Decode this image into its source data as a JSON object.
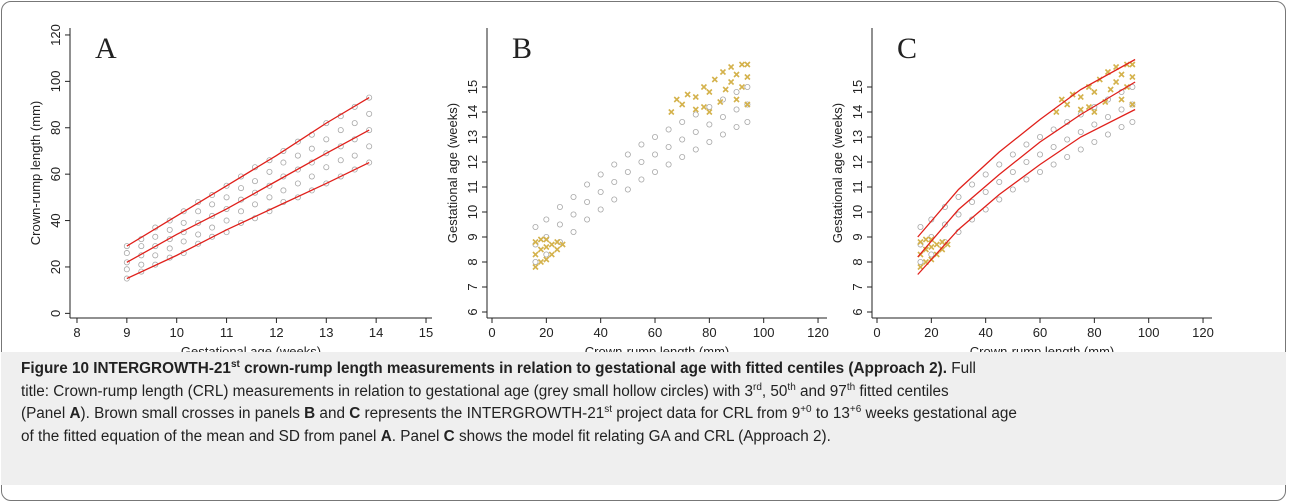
{
  "chart_data": [
    {
      "type": "scatter",
      "title": "A",
      "x_label": "Gestational age (weeks)",
      "y_label": "Crown-rump length (mm)",
      "xlim": [
        7.86,
        15.12
      ],
      "xticks": [
        8,
        9,
        10,
        11,
        12,
        13,
        14,
        15
      ],
      "ylim": [
        -2,
        123
      ],
      "yticks": [
        0,
        20,
        40,
        60,
        80,
        100,
        120
      ],
      "series": [
        {
          "marker": "hollow-circle",
          "color": "#a8a8a8",
          "x": [
            9,
            9.29,
            9.57,
            9.86,
            10.14,
            10.43,
            10.71,
            11,
            11.29,
            11.57,
            11.86,
            12.14,
            12.43,
            12.71,
            13,
            13.29,
            13.57,
            13.86
          ],
          "values": [
            15,
            18,
            21,
            24,
            26,
            30,
            33,
            35,
            39,
            41,
            44,
            48,
            50,
            53,
            56,
            59,
            62,
            65
          ]
        },
        {
          "marker": "hollow-circle",
          "color": "#a8a8a8",
          "x": [
            9,
            9.29,
            9.57,
            9.86,
            10.14,
            10.43,
            10.71,
            11,
            11.29,
            11.57,
            11.86,
            12.14,
            12.43,
            12.71,
            13,
            13.29,
            13.57,
            13.86
          ],
          "values": [
            19,
            21,
            25,
            28,
            31,
            34,
            37,
            40,
            44,
            47,
            50,
            53,
            56,
            59,
            63,
            66,
            68,
            72
          ]
        },
        {
          "marker": "hollow-circle",
          "color": "#a8a8a8",
          "x": [
            9,
            9.29,
            9.57,
            9.86,
            10.14,
            10.43,
            10.71,
            11,
            11.29,
            11.57,
            11.86,
            12.14,
            12.43,
            12.71,
            13,
            13.29,
            13.57,
            13.86
          ],
          "values": [
            22,
            25,
            29,
            32,
            35,
            39,
            42,
            45,
            49,
            52,
            55,
            59,
            62,
            65,
            69,
            72,
            75,
            79
          ]
        },
        {
          "marker": "hollow-circle",
          "color": "#a8a8a8",
          "x": [
            9,
            9.29,
            9.57,
            9.86,
            10.14,
            10.43,
            10.71,
            11,
            11.29,
            11.57,
            11.86,
            12.14,
            12.43,
            12.71,
            13,
            13.29,
            13.57,
            13.86
          ],
          "values": [
            26,
            29,
            33,
            36,
            39,
            44,
            47,
            50,
            54,
            57,
            61,
            65,
            68,
            71,
            75,
            79,
            82,
            86
          ]
        },
        {
          "marker": "hollow-circle",
          "color": "#a8a8a8",
          "x": [
            9,
            9.29,
            9.57,
            9.86,
            10.14,
            10.43,
            10.71,
            11,
            11.29,
            11.57,
            11.86,
            12.14,
            12.43,
            12.71,
            13,
            13.29,
            13.57,
            13.86
          ],
          "values": [
            29,
            32,
            37,
            40,
            44,
            48,
            51,
            55,
            59,
            63,
            66,
            70,
            74,
            77,
            82,
            85,
            89,
            93
          ]
        },
        {
          "marker": "line",
          "color": "#e0201b",
          "x": [
            9,
            10,
            11,
            12,
            13,
            13.86
          ],
          "values": [
            15,
            25,
            36,
            46,
            56,
            65
          ]
        },
        {
          "marker": "line",
          "color": "#e0201b",
          "x": [
            9,
            10,
            11,
            12,
            13,
            13.86
          ],
          "values": [
            22,
            34,
            45,
            57,
            69,
            79
          ]
        },
        {
          "marker": "line",
          "color": "#e0201b",
          "x": [
            9,
            10,
            11,
            12,
            13,
            13.86
          ],
          "values": [
            29,
            42,
            55,
            68,
            82,
            93
          ]
        }
      ]
    },
    {
      "type": "scatter",
      "title": "B",
      "x_label": "Crown-rump length (mm)",
      "y_label": "Gestational age (weeks)",
      "xlim": [
        -1.84,
        123.3
      ],
      "xticks": [
        0,
        20,
        40,
        60,
        80,
        100,
        120
      ],
      "ylim": [
        5.76,
        17.36
      ],
      "yticks": [
        6,
        7,
        8,
        9,
        10,
        11,
        12,
        13,
        14,
        15
      ],
      "series": [
        {
          "marker": "hollow-circle",
          "color": "#a8a8a8",
          "x": [
            16,
            20,
            25,
            30,
            35,
            40,
            45,
            50,
            55,
            60,
            65,
            70,
            75,
            80,
            85,
            90,
            94
          ],
          "values": [
            8.0,
            8.3,
            8.8,
            9.2,
            9.7,
            10.1,
            10.5,
            10.9,
            11.3,
            11.6,
            11.9,
            12.2,
            12.5,
            12.8,
            13.1,
            13.4,
            13.6
          ]
        },
        {
          "marker": "hollow-circle",
          "color": "#a8a8a8",
          "x": [
            16,
            20,
            25,
            30,
            35,
            40,
            45,
            50,
            55,
            60,
            65,
            70,
            75,
            80,
            85,
            90,
            94
          ],
          "values": [
            8.7,
            9.0,
            9.5,
            9.9,
            10.4,
            10.8,
            11.2,
            11.6,
            12.0,
            12.3,
            12.6,
            12.9,
            13.2,
            13.5,
            13.8,
            14.1,
            14.3
          ]
        },
        {
          "marker": "hollow-circle",
          "color": "#a8a8a8",
          "x": [
            16,
            20,
            25,
            30,
            35,
            40,
            45,
            50,
            55,
            60,
            65,
            70,
            75,
            80,
            85,
            90,
            94
          ],
          "values": [
            9.4,
            9.7,
            10.2,
            10.6,
            11.1,
            11.5,
            11.9,
            12.3,
            12.7,
            13.0,
            13.3,
            13.6,
            13.9,
            14.2,
            14.5,
            14.8,
            15.0
          ]
        },
        {
          "marker": "cross",
          "color": "#d4b24c",
          "x": [
            16,
            16,
            16,
            18,
            18,
            18,
            20,
            20,
            20,
            22,
            22,
            24,
            24,
            26
          ],
          "values": [
            7.8,
            8.3,
            8.8,
            8.0,
            8.5,
            8.9,
            8.1,
            8.6,
            8.9,
            8.3,
            8.7,
            8.5,
            8.8,
            8.7
          ]
        },
        {
          "marker": "cross",
          "color": "#d4b24c",
          "x": [
            66,
            68,
            70,
            72,
            75,
            75,
            78,
            78,
            80,
            80,
            82,
            84,
            85,
            86,
            88,
            88,
            90,
            90,
            92,
            92,
            94,
            94,
            94
          ],
          "values": [
            14.0,
            14.5,
            14.3,
            14.7,
            14.1,
            14.6,
            14.2,
            15.0,
            14.0,
            14.8,
            15.3,
            14.4,
            15.6,
            14.9,
            15.2,
            15.8,
            14.5,
            15.5,
            15.0,
            15.9,
            14.3,
            15.4,
            15.9
          ]
        }
      ]
    },
    {
      "type": "scatter",
      "title": "C",
      "x_label": "Crown-rump length (mm)",
      "y_label": "Gestational age (weeks)",
      "xlim": [
        -1.84,
        123.3
      ],
      "xticks": [
        0,
        20,
        40,
        60,
        80,
        100,
        120
      ],
      "ylim": [
        5.76,
        17.36
      ],
      "yticks": [
        6,
        7,
        8,
        9,
        10,
        11,
        12,
        13,
        14,
        15
      ],
      "series": [
        {
          "marker": "hollow-circle",
          "color": "#a8a8a8",
          "x": [
            16,
            20,
            25,
            30,
            35,
            40,
            45,
            50,
            55,
            60,
            65,
            70,
            75,
            80,
            85,
            90,
            94
          ],
          "values": [
            8.0,
            8.3,
            8.8,
            9.2,
            9.7,
            10.1,
            10.5,
            10.9,
            11.3,
            11.6,
            11.9,
            12.2,
            12.5,
            12.8,
            13.1,
            13.4,
            13.6
          ]
        },
        {
          "marker": "hollow-circle",
          "color": "#a8a8a8",
          "x": [
            16,
            20,
            25,
            30,
            35,
            40,
            45,
            50,
            55,
            60,
            65,
            70,
            75,
            80,
            85,
            90,
            94
          ],
          "values": [
            8.7,
            9.0,
            9.5,
            9.9,
            10.4,
            10.8,
            11.2,
            11.6,
            12.0,
            12.3,
            12.6,
            12.9,
            13.2,
            13.5,
            13.8,
            14.1,
            14.3
          ]
        },
        {
          "marker": "hollow-circle",
          "color": "#a8a8a8",
          "x": [
            16,
            20,
            25,
            30,
            35,
            40,
            45,
            50,
            55,
            60,
            65,
            70,
            75,
            80,
            85,
            90,
            94
          ],
          "values": [
            9.4,
            9.7,
            10.2,
            10.6,
            11.1,
            11.5,
            11.9,
            12.3,
            12.7,
            13.0,
            13.3,
            13.6,
            13.9,
            14.2,
            14.5,
            14.8,
            15.0
          ]
        },
        {
          "marker": "cross",
          "color": "#d4b24c",
          "x": [
            16,
            16,
            16,
            18,
            18,
            18,
            20,
            20,
            20,
            22,
            22,
            24,
            24,
            26
          ],
          "values": [
            7.8,
            8.3,
            8.8,
            8.0,
            8.5,
            8.9,
            8.1,
            8.6,
            8.9,
            8.3,
            8.7,
            8.5,
            8.8,
            8.7
          ]
        },
        {
          "marker": "cross",
          "color": "#d4b24c",
          "x": [
            66,
            68,
            70,
            72,
            75,
            75,
            78,
            78,
            80,
            80,
            82,
            84,
            85,
            86,
            88,
            88,
            90,
            90,
            92,
            92,
            94,
            94,
            94
          ],
          "values": [
            14.0,
            14.5,
            14.3,
            14.7,
            14.1,
            14.6,
            14.2,
            15.0,
            14.0,
            14.8,
            15.3,
            14.4,
            15.6,
            14.9,
            15.2,
            15.8,
            14.5,
            15.5,
            15.0,
            15.9,
            14.3,
            15.4,
            15.9
          ]
        },
        {
          "marker": "line",
          "color": "#e0201b",
          "x": [
            15,
            30,
            45,
            60,
            75,
            95
          ],
          "values": [
            7.5,
            9.3,
            10.7,
            11.9,
            13.0,
            14.1
          ]
        },
        {
          "marker": "line",
          "color": "#e0201b",
          "x": [
            15,
            30,
            45,
            60,
            75,
            95
          ],
          "values": [
            8.2,
            10.1,
            11.5,
            12.8,
            13.9,
            15.2
          ]
        },
        {
          "marker": "line",
          "color": "#e0201b",
          "x": [
            15,
            30,
            45,
            60,
            75,
            95
          ],
          "values": [
            9.0,
            10.9,
            12.4,
            13.7,
            14.9,
            16.1
          ]
        }
      ]
    }
  ],
  "caption": {
    "lines": [
      [
        {
          "text": "Figure 10 INTERGROWTH-21",
          "format": "bold"
        },
        {
          "text": "st",
          "format": "bold sup"
        },
        {
          "text": " crown-rump length measurements in relation to gestational age with fitted centiles (Approach 2).",
          "format": "bold"
        },
        {
          "text": " Full"
        }
      ],
      [
        {
          "text": "title: Crown-rump length (CRL) measurements in relation to gestational age (grey small hollow circles) with 3"
        },
        {
          "text": "rd",
          "format": "sup"
        },
        {
          "text": ", 50"
        },
        {
          "text": "th",
          "format": "sup"
        },
        {
          "text": " and 97"
        },
        {
          "text": "th",
          "format": "sup"
        },
        {
          "text": " fitted centiles"
        }
      ],
      [
        {
          "text": "(Panel "
        },
        {
          "text": "A",
          "format": "bold"
        },
        {
          "text": "). Brown small crosses in panels "
        },
        {
          "text": "B",
          "format": "bold"
        },
        {
          "text": " and "
        },
        {
          "text": "C",
          "format": "bold"
        },
        {
          "text": " represents the INTERGROWTH-21"
        },
        {
          "text": "st",
          "format": "sup"
        },
        {
          "text": " project data for CRL from 9"
        },
        {
          "text": "+0",
          "format": "sup"
        },
        {
          "text": " to 13"
        },
        {
          "text": "+6",
          "format": "sup"
        },
        {
          "text": " weeks gestational age"
        }
      ],
      [
        {
          "text": "of the fitted equation of the mean and SD from panel "
        },
        {
          "text": "A",
          "format": "bold"
        },
        {
          "text": ". Panel "
        },
        {
          "text": "C",
          "format": "bold"
        },
        {
          "text": " shows the model fit relating GA and CRL (Approach 2)."
        }
      ]
    ]
  }
}
